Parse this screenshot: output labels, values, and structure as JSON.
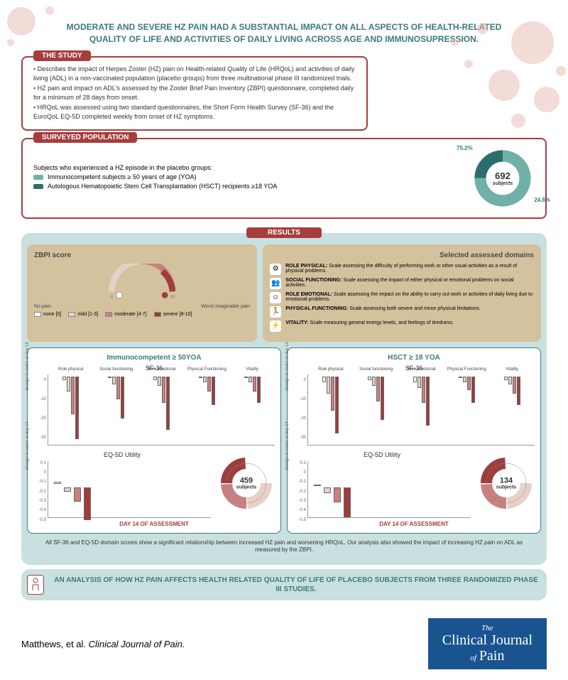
{
  "header": {
    "title": "MODERATE AND SEVERE HZ PAIN HAD A SUBSTANTIAL IMPACT ON ALL ASPECTS OF HEALTH-RELATED QUALITY OF LIFE AND ACTIVITIES OF DAILY LIVING ACROSS AGE AND IMMUNOSUPRESSION."
  },
  "study": {
    "label": "THE STUDY",
    "border_color": "#a63d3d",
    "bullets": [
      "Describes the impact of Herpes Zoster (HZ) pain on Health-related Quality of Life (HRQoL) and activities of daily living (ADL) in a non-vaccinated population (placebo groups) from three multinational phase III randomized trials.",
      "HZ pain and impact on ADL's assessed by the Zoster Brief Pain Inventory (ZBPI) questionnaire, completed daily for a minimum of 28 days from onset.",
      "HRQoL was assessed using two standard questionnaires, the Short Form Health Survey (SF-36) and the EuroQoL EQ-5D completed weekly from onset of HZ symptoms."
    ]
  },
  "population": {
    "label": "SURVEYED POPULATION",
    "intro": "Subjects who experienced a HZ episode in the placebo groups:",
    "groups": [
      {
        "color": "#6fb0a8",
        "text": "Immunocompetent subjects ≥ 50 years of age (YOA)"
      },
      {
        "color": "#2d6d6d",
        "text": "Autologous Hematopoietic Stem Cell Transplantation (HSCT) recipients ≥18 YOA"
      }
    ],
    "donut": {
      "total": "692",
      "unit": "subjects",
      "slices": [
        {
          "pct": 75.2,
          "label": "75.2%",
          "color": "#6fb0a8"
        },
        {
          "pct": 24.8,
          "label": "24.8%",
          "color": "#2d6d6d"
        }
      ]
    }
  },
  "results": {
    "label": "RESULTS",
    "zbpi": {
      "title": "ZBPI score",
      "left_label": "No pain",
      "right_label": "Worst imaginable pain",
      "min": "0",
      "max": "10"
    },
    "severity": [
      {
        "color": "#ffffff",
        "label": "none [0]"
      },
      {
        "color": "#e8d0c8",
        "label": "mild [1-3]"
      },
      {
        "color": "#c98080",
        "label": "moderate [4-7]"
      },
      {
        "color": "#9e3d3d",
        "label": "severe [8-10]"
      }
    ],
    "domains": {
      "title": "Selected assessed domains",
      "items": [
        {
          "icon": "⚙",
          "name": "ROLE PHYSICAL:",
          "desc": "Scale assessing the difficulty of performing work or other usual activities as a result of physical problems."
        },
        {
          "icon": "👥",
          "name": "SOCIAL FUNCTIONING:",
          "desc": "Scale assessing the impact of either physical or emotional problems on social activities."
        },
        {
          "icon": "☺",
          "name": "ROLE EMOTIONAL:",
          "desc": "Scale assessing the impact on the ability to carry out work or activities of daily living due to emotional problems."
        },
        {
          "icon": "🏃",
          "name": "PHYSICAL FUNCTIONING:",
          "desc": "Scale assessing both severe and minor physical limitations."
        },
        {
          "icon": "⚡",
          "name": "VITALITY:",
          "desc": "Scale measuring general energy levels, and feelings of tiredness."
        }
      ]
    },
    "charts": [
      {
        "title": "Immunocompetent ≥ 50YOA",
        "sf36_label": "SF-36",
        "y_label": "change in score at day 14",
        "y_ticks": [
          0,
          -10,
          -20,
          -30
        ],
        "ylim": [
          -35,
          2
        ],
        "categories": [
          "Role physical",
          "Social functioning",
          "Role emotional",
          "Physical Functioning",
          "Vitality"
        ],
        "series": [
          {
            "color": "#ffffff",
            "values": [
              -2,
              -1,
              -2,
              -1,
              -1
            ]
          },
          {
            "color": "#e8d0c8",
            "values": [
              -8,
              -4,
              -5,
              -3,
              -3
            ]
          },
          {
            "color": "#c98080",
            "values": [
              -20,
              -12,
              -14,
              -8,
              -8
            ]
          },
          {
            "color": "#9e3d3d",
            "values": [
              -33,
              -22,
              -28,
              -15,
              -14
            ]
          }
        ],
        "eq5d": {
          "label": "EQ-5D Utility",
          "y_ticks": [
            0.1,
            0,
            -0.1,
            -0.2,
            -0.3,
            -0.4,
            -0.5
          ],
          "ylim": [
            -0.5,
            0.1
          ],
          "values": [
            {
              "color": "#ffffff",
              "v": 0.02
            },
            {
              "color": "#e8d0c8",
              "v": -0.05
            },
            {
              "color": "#c98080",
              "v": -0.15
            },
            {
              "color": "#9e3d3d",
              "v": -0.35
            }
          ]
        },
        "donut": {
          "total": "459",
          "unit": "subjects",
          "slices": [
            {
              "color": "#ffffff",
              "pct": 25
            },
            {
              "color": "#e8d0c8",
              "pct": 25
            },
            {
              "color": "#c98080",
              "pct": 25
            },
            {
              "color": "#9e3d3d",
              "pct": 25
            }
          ]
        },
        "day_label": "DAY 14 OF ASSESSMENT"
      },
      {
        "title": "HSCT ≥ 18 YOA",
        "sf36_label": "SF-36",
        "y_label": "change in score at day 14",
        "y_ticks": [
          0,
          -10,
          -20,
          -30
        ],
        "ylim": [
          -35,
          2
        ],
        "categories": [
          "Role physical",
          "Social functioning",
          "Role emotional",
          "Physical Functioning",
          "Vitality"
        ],
        "series": [
          {
            "color": "#ffffff",
            "values": [
              -3,
              -2,
              -3,
              -1,
              -2
            ]
          },
          {
            "color": "#e8d0c8",
            "values": [
              -9,
              -5,
              -6,
              -3,
              -4
            ]
          },
          {
            "color": "#c98080",
            "values": [
              -18,
              -13,
              -14,
              -7,
              -9
            ]
          },
          {
            "color": "#9e3d3d",
            "values": [
              -30,
              -23,
              -26,
              -14,
              -15
            ]
          }
        ],
        "eq5d": {
          "label": "EQ-5D Utility",
          "y_ticks": [
            0.1,
            0,
            -0.1,
            -0.2,
            -0.3,
            -0.4,
            -0.5
          ],
          "ylim": [
            -0.5,
            0.1
          ],
          "values": [
            {
              "color": "#ffffff",
              "v": 0.01
            },
            {
              "color": "#e8d0c8",
              "v": -0.06
            },
            {
              "color": "#c98080",
              "v": -0.16
            },
            {
              "color": "#9e3d3d",
              "v": -0.32
            }
          ]
        },
        "donut": {
          "total": "134",
          "unit": "subjects",
          "slices": [
            {
              "color": "#ffffff",
              "pct": 25
            },
            {
              "color": "#e8d0c8",
              "pct": 25
            },
            {
              "color": "#c98080",
              "pct": 25
            },
            {
              "color": "#9e3d3d",
              "pct": 25
            }
          ]
        },
        "day_label": "DAY 14 OF ASSESSMENT"
      }
    ],
    "footer_note": "All SF-36 and EQ-5D domain scores show a significant relationship between increased HZ pain and worsening HRQoL. Our analysis also showed the impact of increasing HZ pain on ADL as measured by the ZBPI."
  },
  "outside_footer": "AN ANALYSIS OF HOW HZ PAIN AFFECTS HEALTH RELATED QUALITY OF LIFE OF PLACEBO SUBJECTS FROM THREE RANDOMIZED PHASE III STUDIES.",
  "citation": {
    "authors": "Matthews, et al.",
    "journal": "Clinical Journal of Pain."
  },
  "journal_logo": {
    "the": "The",
    "line1": "Clinical Journal",
    "of": "of",
    "line2": "Pain"
  }
}
